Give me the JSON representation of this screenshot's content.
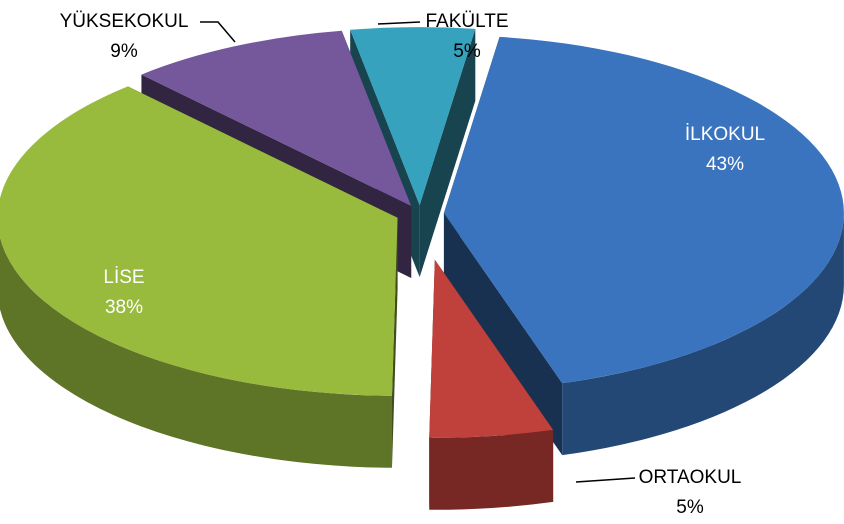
{
  "chart_data": {
    "type": "pie",
    "style": "3d-exploded",
    "title": "",
    "categories": [
      "İLKOKUL",
      "ORTAOKUL",
      "LİSE",
      "YÜKSEKOKUL",
      "FAKÜLTE"
    ],
    "values": [
      43,
      5,
      38,
      9,
      5
    ],
    "value_labels": [
      "43%",
      "5%",
      "38%",
      "9%",
      "5%"
    ],
    "colors": [
      "#3a74be",
      "#c0403b",
      "#98bb3e",
      "#75579c",
      "#36a2bd"
    ],
    "legend": "none"
  }
}
